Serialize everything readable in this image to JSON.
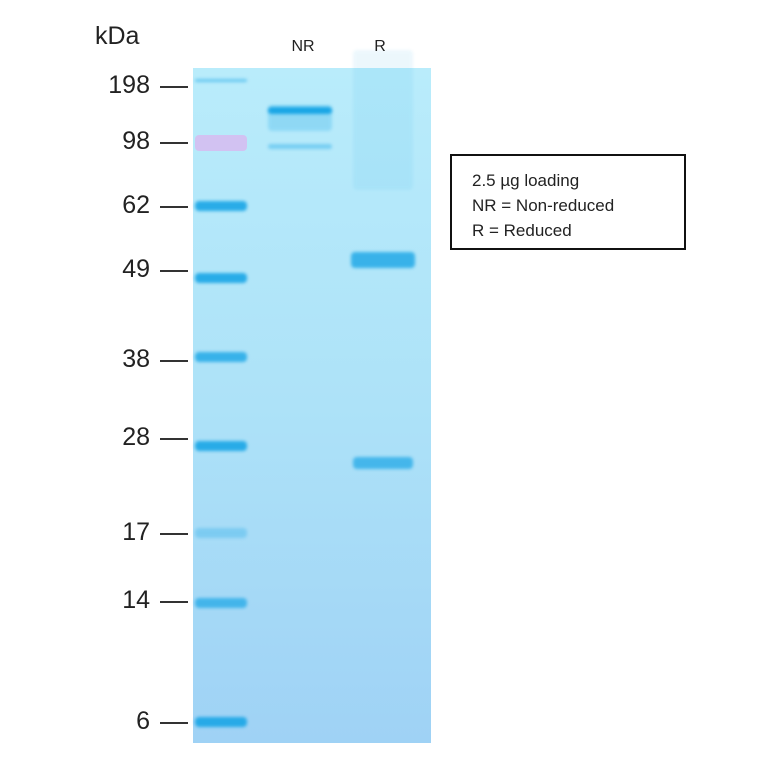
{
  "unit_label": "kDa",
  "lanes": [
    {
      "label": "NR"
    },
    {
      "label": "R"
    }
  ],
  "markers": [
    "198",
    "98",
    "62",
    "49",
    "38",
    "28",
    "17",
    "14",
    "6"
  ],
  "legend": {
    "lines": [
      "2.5 µg loading",
      "NR = Non-reduced",
      "R = Reduced"
    ]
  },
  "colors": {
    "gel": "#ade2f8",
    "band": "#1aa6e6",
    "prestained_98": "#d9b8f0"
  }
}
